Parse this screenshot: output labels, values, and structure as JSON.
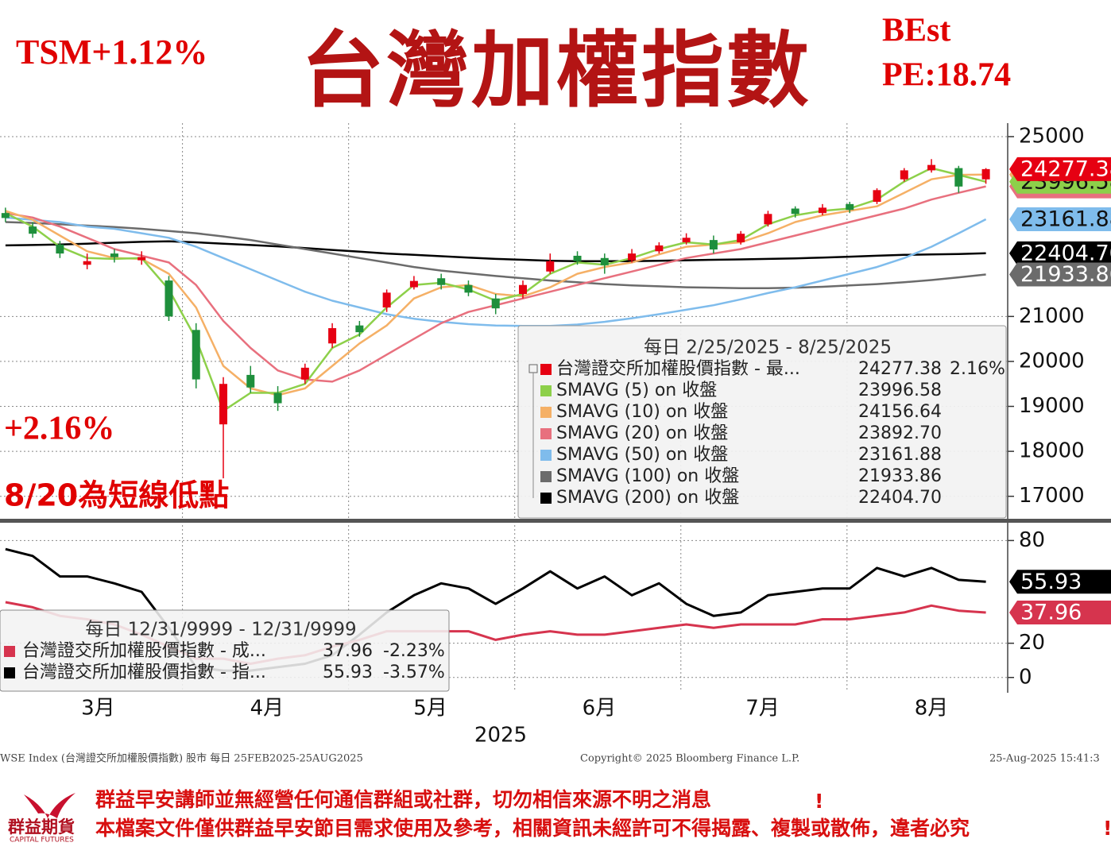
{
  "header": {
    "left_note": "TSM+1.12%",
    "title": "台灣加權指數",
    "right_note_1": "BEst",
    "right_note_2": "PE:18.74"
  },
  "annotations": [
    "+2.16%",
    "8/20為短線低點"
  ],
  "chart_data": [
    {
      "type": "candlestick",
      "x": [
        58,
        63,
        68,
        73,
        78,
        83,
        88,
        93,
        98,
        103,
        108,
        113,
        118,
        123,
        128,
        133,
        138,
        143,
        148,
        153,
        158,
        163,
        168,
        173,
        178,
        183,
        188,
        193,
        198,
        203,
        208,
        213,
        218,
        223,
        228,
        233,
        238
      ],
      "open": [
        23300,
        23000,
        22600,
        22150,
        22400,
        22250,
        21800,
        20700,
        18600,
        19700,
        19300,
        19600,
        20400,
        20800,
        21200,
        21650,
        21850,
        21700,
        21400,
        21500,
        22000,
        22350,
        22300,
        22250,
        22450,
        22650,
        22700,
        22650,
        23050,
        23400,
        23300,
        23500,
        23550,
        24050,
        24250,
        24300,
        24050
      ],
      "high": [
        23420,
        23100,
        22680,
        22400,
        22500,
        22450,
        21900,
        20850,
        19650,
        19900,
        19450,
        19950,
        20850,
        20900,
        21600,
        21900,
        21950,
        21800,
        21500,
        21800,
        22400,
        22450,
        22400,
        22500,
        22650,
        22850,
        22800,
        22900,
        23350,
        23450,
        23500,
        23550,
        23850,
        24300,
        24500,
        24350,
        24300
      ],
      "low": [
        23100,
        22750,
        22300,
        22050,
        22200,
        22150,
        20900,
        19400,
        17400,
        19300,
        18900,
        19500,
        20300,
        20550,
        21100,
        21600,
        21600,
        21450,
        21050,
        21400,
        21950,
        22150,
        21950,
        22200,
        22400,
        22600,
        22400,
        22600,
        23000,
        23200,
        23250,
        23300,
        23500,
        24000,
        24200,
        23750,
        23950
      ],
      "close": [
        23190,
        22840,
        22400,
        22230,
        22320,
        22320,
        21000,
        19600,
        19500,
        19420,
        19070,
        19860,
        20740,
        20650,
        21530,
        21790,
        21700,
        21530,
        21180,
        21700,
        22230,
        22230,
        22140,
        22400,
        22580,
        22750,
        22490,
        22840,
        23280,
        23280,
        23420,
        23370,
        23810,
        24250,
        24370,
        23890,
        24277.38
      ],
      "up_color": "#e60012",
      "down_color": "#1e8f3c",
      "xlim": [
        57,
        242
      ],
      "ylim": [
        16500,
        25300
      ],
      "yticks": [
        17000,
        18000,
        19000,
        20000,
        21000,
        25000
      ],
      "grid": true,
      "legend": {
        "title": "每日 2/25/2025 - 8/25/2025",
        "main_entry": {
          "name": "台灣證交所加權股價指數 - 最...",
          "value": "24277.38",
          "change": "2.16%"
        }
      },
      "series": [
        {
          "name": "SMAVG (5)  on 收盤",
          "color": "#8dd04a",
          "legend_value": "23996.58",
          "values": [
            23300,
            23000,
            22550,
            22300,
            22280,
            22300,
            21600,
            20500,
            18900,
            19300,
            19300,
            19500,
            20300,
            20600,
            21200,
            21700,
            21750,
            21600,
            21350,
            21500,
            21950,
            22200,
            22150,
            22300,
            22500,
            22650,
            22600,
            22700,
            23050,
            23250,
            23350,
            23400,
            23600,
            24000,
            24300,
            24150,
            23996.58
          ]
        },
        {
          "name": "SMAVG (10)  on 收盤",
          "color": "#f5b066",
          "legend_value": "24156.64",
          "values": [
            23350,
            23150,
            22800,
            22450,
            22300,
            22280,
            21950,
            21200,
            19900,
            19400,
            19250,
            19400,
            19900,
            20400,
            20800,
            21400,
            21650,
            21700,
            21500,
            21450,
            21650,
            21950,
            22100,
            22200,
            22380,
            22550,
            22600,
            22650,
            22850,
            23100,
            23250,
            23350,
            23450,
            23750,
            24050,
            24150,
            24156.64
          ]
        },
        {
          "name": "SMAVG (20)  on 收盤",
          "color": "#e8707e",
          "legend_value": "23892.70",
          "values": [
            23300,
            23200,
            23000,
            22750,
            22500,
            22350,
            22200,
            21700,
            20900,
            20300,
            19800,
            19600,
            19550,
            19800,
            20150,
            20500,
            20850,
            21100,
            21250,
            21400,
            21550,
            21700,
            21850,
            22000,
            22150,
            22300,
            22400,
            22500,
            22650,
            22800,
            22950,
            23100,
            23250,
            23400,
            23600,
            23750,
            23892.7
          ]
        },
        {
          "name": "SMAVG (50)  on 收盤",
          "color": "#7fbcec",
          "legend_value": "23161.88",
          "values": [
            23200,
            23150,
            23100,
            23000,
            22950,
            22850,
            22750,
            22550,
            22300,
            22050,
            21800,
            21550,
            21350,
            21200,
            21050,
            20950,
            20880,
            20830,
            20800,
            20790,
            20790,
            20820,
            20880,
            20960,
            21050,
            21150,
            21250,
            21380,
            21520,
            21650,
            21800,
            21950,
            22100,
            22300,
            22550,
            22850,
            23161.88
          ]
        },
        {
          "name": "SMAVG (100)  on 收盤",
          "color": "#6b6b6b",
          "legend_value": "21933.86",
          "values": [
            23100,
            23080,
            23050,
            23020,
            22990,
            22950,
            22900,
            22850,
            22780,
            22700,
            22600,
            22500,
            22400,
            22300,
            22200,
            22100,
            22020,
            21960,
            21900,
            21850,
            21800,
            21760,
            21720,
            21690,
            21670,
            21650,
            21640,
            21630,
            21630,
            21640,
            21660,
            21690,
            21720,
            21760,
            21810,
            21870,
            21933.86
          ]
        },
        {
          "name": "SMAVG (200)  on 收盤",
          "color": "#000000",
          "legend_value": "22404.70",
          "values": [
            22580,
            22590,
            22600,
            22620,
            22640,
            22660,
            22670,
            22650,
            22620,
            22590,
            22560,
            22520,
            22480,
            22440,
            22400,
            22370,
            22340,
            22310,
            22280,
            22260,
            22240,
            22230,
            22230,
            22230,
            22240,
            22250,
            22260,
            22270,
            22280,
            22290,
            22310,
            22330,
            22350,
            22370,
            22380,
            22390,
            22404.7
          ]
        }
      ]
    },
    {
      "type": "line",
      "x": [
        58,
        63,
        68,
        73,
        78,
        83,
        88,
        93,
        98,
        103,
        108,
        113,
        118,
        123,
        128,
        133,
        138,
        143,
        148,
        153,
        158,
        163,
        168,
        173,
        178,
        183,
        188,
        193,
        198,
        203,
        208,
        213,
        218,
        223,
        228,
        233,
        238
      ],
      "xlim": [
        57,
        242
      ],
      "ylim": [
        -8,
        89
      ],
      "yticks": [
        0,
        20,
        80
      ],
      "grid": true,
      "xticks": [
        {
          "value": 75,
          "label": "3月"
        },
        {
          "value": 106,
          "label": "4月"
        },
        {
          "value": 136,
          "label": "5月"
        },
        {
          "value": 167,
          "label": "6月"
        },
        {
          "value": 197,
          "label": "7月"
        },
        {
          "value": 228,
          "label": "8月"
        }
      ],
      "xlabel": "2025",
      "legend": {
        "title": "每日 12/31/9999 - 12/31/9999"
      },
      "series": [
        {
          "name": "台灣證交所加權股價指數 - 成...",
          "color": "#d6344e",
          "legend_value": "37.96",
          "legend_change": "-2.23%",
          "values": [
            44,
            41,
            36,
            34,
            31,
            25,
            18,
            11,
            11,
            8,
            11,
            13,
            18,
            22,
            27,
            27,
            27,
            27,
            22,
            25,
            27,
            25,
            25,
            27,
            29,
            31,
            29,
            31,
            31,
            31,
            34,
            34,
            36,
            38,
            42,
            39,
            37.96
          ]
        },
        {
          "name": "台灣證交所加權股價指數 - 指...",
          "color": "#000000",
          "legend_value": "55.93",
          "legend_change": "-3.57%",
          "values": [
            75,
            71,
            59,
            59,
            55,
            50,
            29,
            6,
            4,
            4,
            6,
            8,
            13,
            25,
            38,
            48,
            55,
            52,
            43,
            52,
            62,
            52,
            59,
            48,
            55,
            43,
            36,
            38,
            48,
            50,
            52,
            52,
            64,
            59,
            64,
            57,
            55.93
          ]
        }
      ]
    }
  ],
  "footer": {
    "left": "WSE Index (台灣證交所加權股價指數) 股市  每日 25FEB2025-25AUG2025",
    "center": "Copyright© 2025 Bloomberg Finance L.P.",
    "right": "25-Aug-2025 15:41:3"
  },
  "disclaimer": {
    "line_1": "群益早安講師並無經營任何通信群組或社群，切勿相信來源不明之消息",
    "mark_1": "!",
    "line_2": "本檔案文件僅供群益早安節目需求使用及參考，相關資訊未經許可不得揭露、複製或散佈，違者必究",
    "mark_2": "!"
  },
  "logo": {
    "name": "群益期貨",
    "subtitle": "CAPITAL FUTURES"
  }
}
